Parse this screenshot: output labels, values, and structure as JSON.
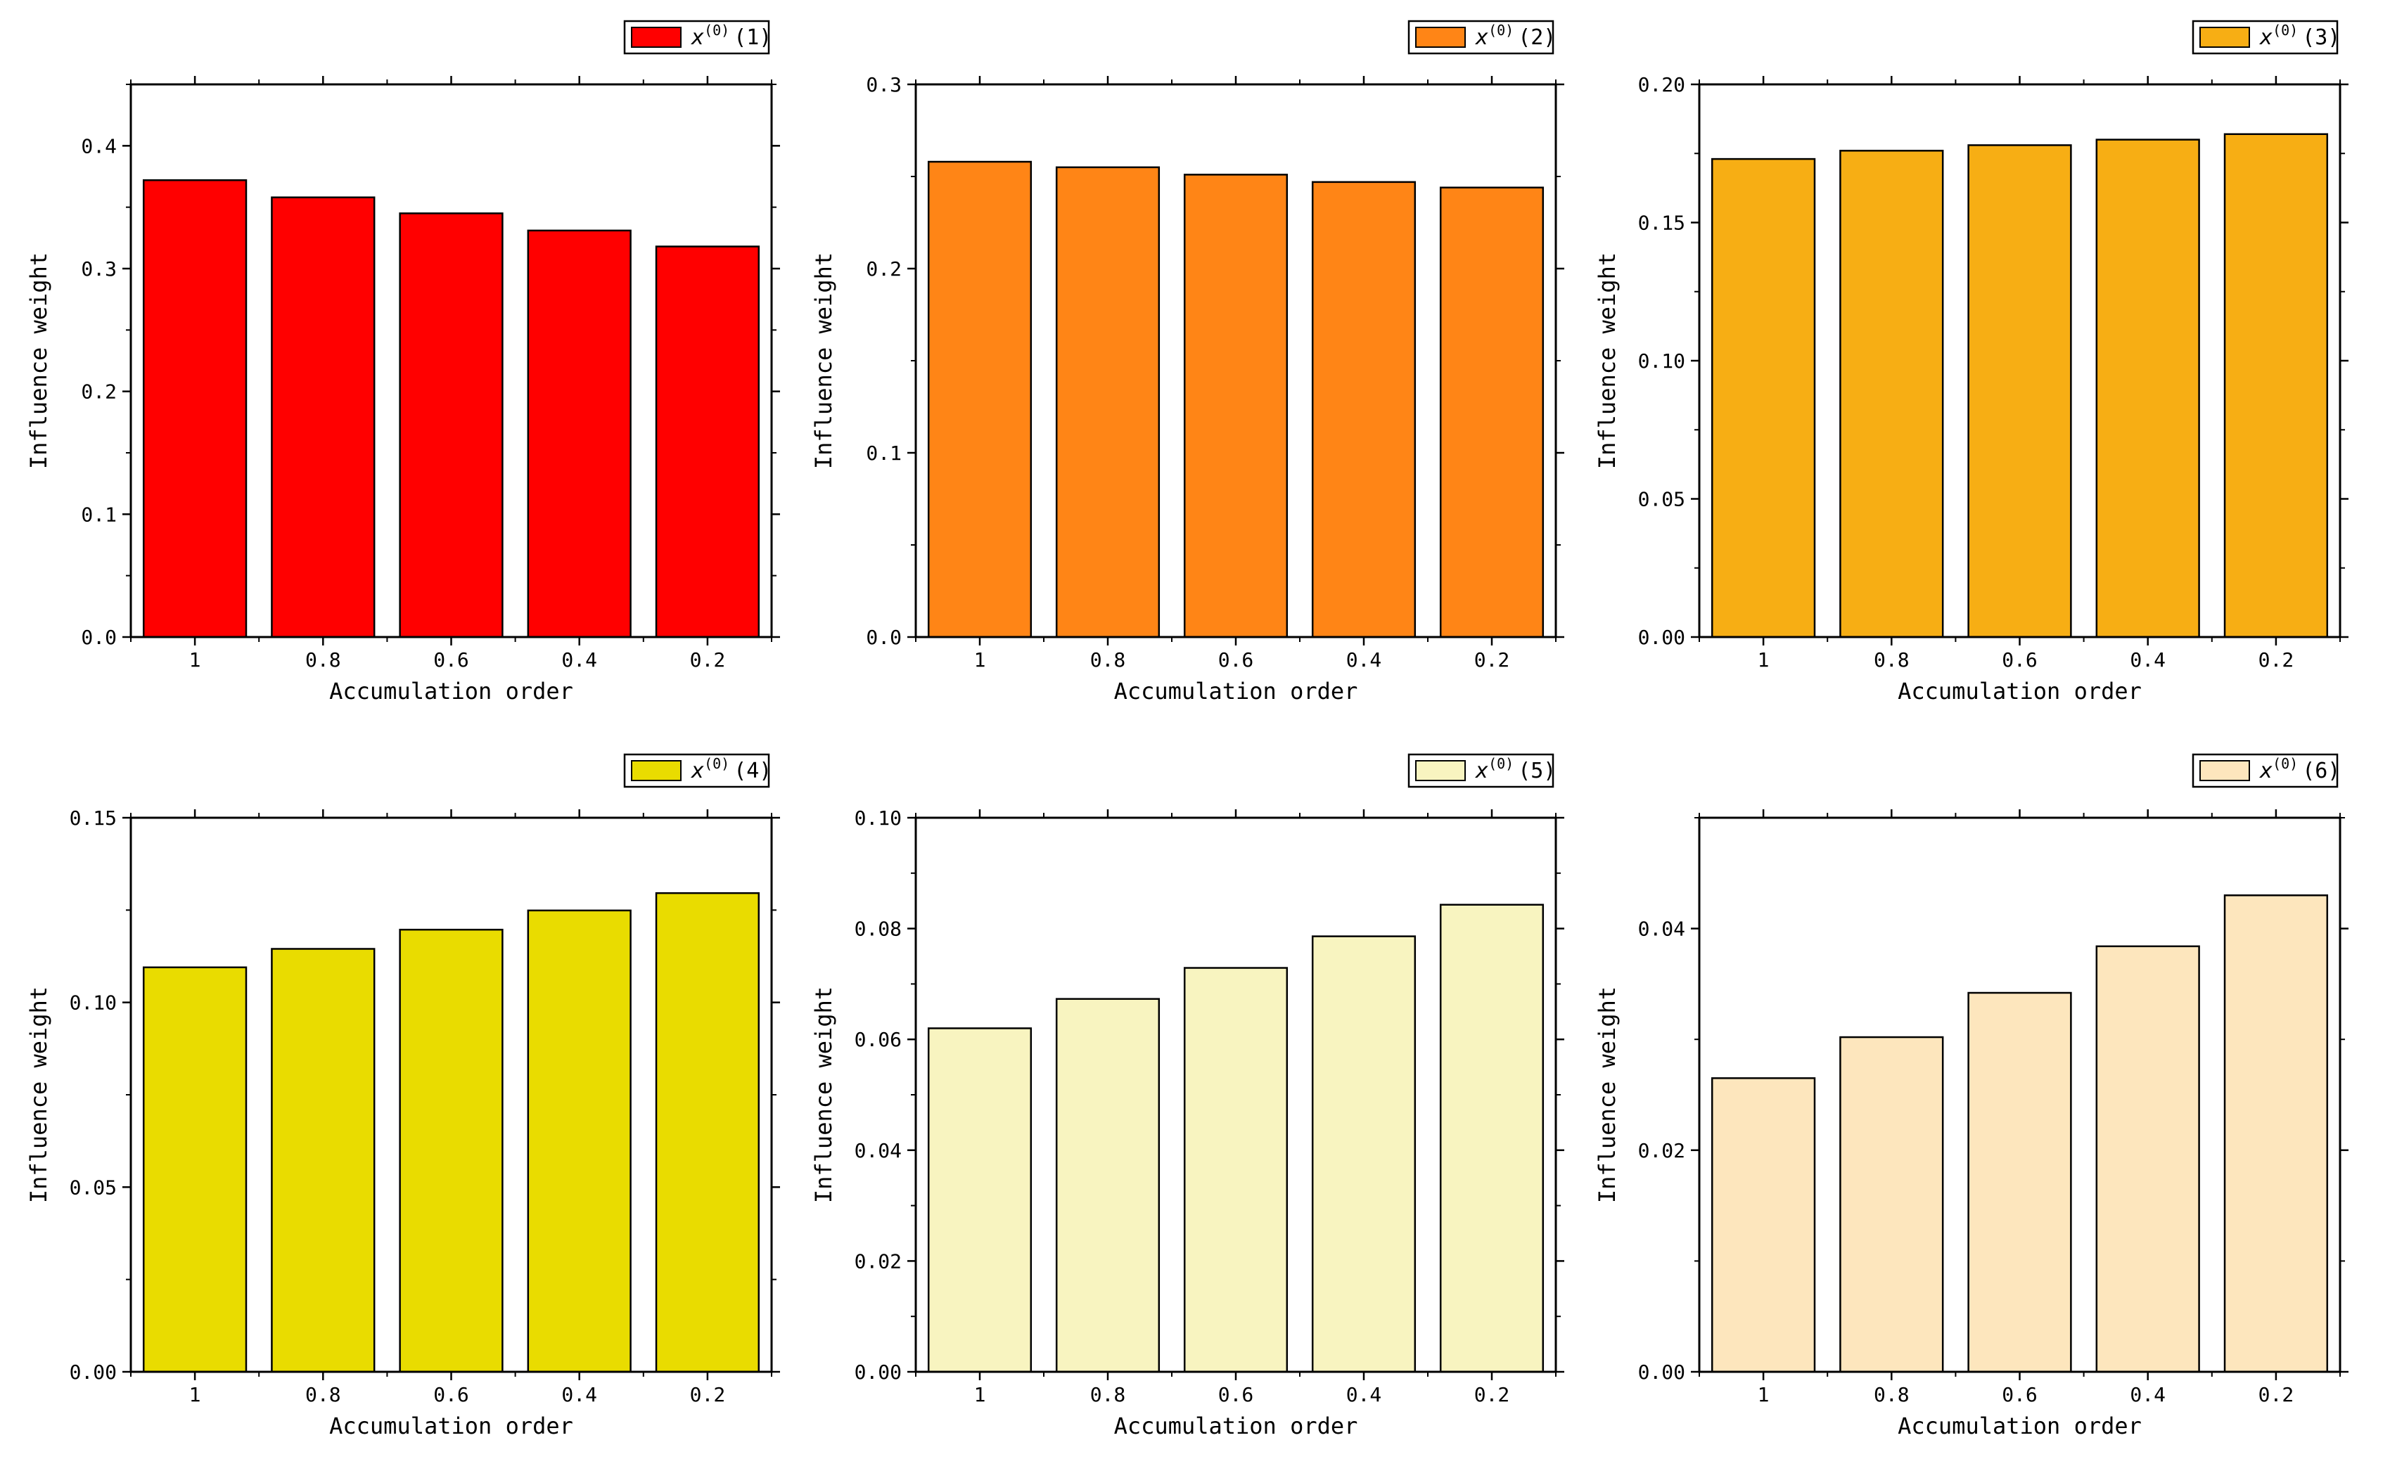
{
  "chart_data": [
    {
      "type": "bar",
      "categories": [
        "1",
        "0.8",
        "0.6",
        "0.4",
        "0.2"
      ],
      "values": [
        0.372,
        0.358,
        0.345,
        0.331,
        0.318
      ],
      "series_name": "x(0)(1)",
      "legend": {
        "var": "x",
        "sup": "(0)",
        "idx": "(1)"
      },
      "color": "#ff0000",
      "xlabel": "Accumulation order",
      "ylabel": "Influence weight",
      "ylim": [
        0,
        0.45
      ],
      "yticks": [
        0,
        0.1,
        0.2,
        0.3,
        0.4
      ],
      "ytick_labels": [
        "0.0",
        "0.1",
        "0.2",
        "0.3",
        "0.4"
      ],
      "minor_step": 0.05,
      "legend_position": "above-top-right"
    },
    {
      "type": "bar",
      "categories": [
        "1",
        "0.8",
        "0.6",
        "0.4",
        "0.2"
      ],
      "values": [
        0.258,
        0.255,
        0.251,
        0.247,
        0.244
      ],
      "series_name": "x(0)(2)",
      "legend": {
        "var": "x",
        "sup": "(0)",
        "idx": "(2)"
      },
      "color": "#ff8516",
      "xlabel": "Accumulation order",
      "ylabel": "Influence weight",
      "ylim": [
        0,
        0.3
      ],
      "yticks": [
        0,
        0.1,
        0.2,
        0.3
      ],
      "ytick_labels": [
        "0.0",
        "0.1",
        "0.2",
        "0.3"
      ],
      "minor_step": 0.05,
      "legend_position": "above-top-right"
    },
    {
      "type": "bar",
      "categories": [
        "1",
        "0.8",
        "0.6",
        "0.4",
        "0.2"
      ],
      "values": [
        0.173,
        0.176,
        0.178,
        0.18,
        0.182
      ],
      "series_name": "x(0)(3)",
      "legend": {
        "var": "x",
        "sup": "(0)",
        "idx": "(3)"
      },
      "color": "#f7ae14",
      "xlabel": "Accumulation order",
      "ylabel": "Influence weight",
      "ylim": [
        0,
        0.2
      ],
      "yticks": [
        0,
        0.05,
        0.1,
        0.15,
        0.2
      ],
      "ytick_labels": [
        "0.00",
        "0.05",
        "0.10",
        "0.15",
        "0.20"
      ],
      "minor_step": 0.025,
      "legend_position": "above-top-right"
    },
    {
      "type": "bar",
      "categories": [
        "1",
        "0.8",
        "0.6",
        "0.4",
        "0.2"
      ],
      "values": [
        0.1095,
        0.1145,
        0.1197,
        0.1249,
        0.1296
      ],
      "series_name": "x(0)(4)",
      "legend": {
        "var": "x",
        "sup": "(0)",
        "idx": "(4)"
      },
      "color": "#e9dc00",
      "xlabel": "Accumulation order",
      "ylabel": "Influence weight",
      "ylim": [
        0,
        0.15
      ],
      "yticks": [
        0,
        0.05,
        0.1,
        0.15
      ],
      "ytick_labels": [
        "0.00",
        "0.05",
        "0.10",
        "0.15"
      ],
      "minor_step": 0.025,
      "legend_position": "above-top-right"
    },
    {
      "type": "bar",
      "categories": [
        "1",
        "0.8",
        "0.6",
        "0.4",
        "0.2"
      ],
      "values": [
        0.062,
        0.0673,
        0.0729,
        0.0786,
        0.0843
      ],
      "series_name": "x(0)(5)",
      "legend": {
        "var": "x",
        "sup": "(0)",
        "idx": "(5)"
      },
      "color": "#f8f4c0",
      "xlabel": "Accumulation order",
      "ylabel": "Influence weight",
      "ylim": [
        0,
        0.1
      ],
      "yticks": [
        0,
        0.02,
        0.04,
        0.06,
        0.08,
        0.1
      ],
      "ytick_labels": [
        "0.00",
        "0.02",
        "0.04",
        "0.06",
        "0.08",
        "0.10"
      ],
      "minor_step": 0.01,
      "legend_position": "above-top-right"
    },
    {
      "type": "bar",
      "categories": [
        "1",
        "0.8",
        "0.6",
        "0.4",
        "0.2"
      ],
      "values": [
        0.0265,
        0.0302,
        0.0342,
        0.0384,
        0.043
      ],
      "series_name": "x(0)(6)",
      "legend": {
        "var": "x",
        "sup": "(0)",
        "idx": "(6)"
      },
      "color": "#fde6bd",
      "xlabel": "Accumulation order",
      "ylabel": "Influence weight",
      "ylim": [
        0,
        0.05
      ],
      "yticks": [
        0,
        0.02,
        0.04
      ],
      "ytick_labels": [
        "0.00",
        "0.02",
        "0.04"
      ],
      "minor_step": 0.01,
      "legend_position": "above-top-right"
    }
  ]
}
